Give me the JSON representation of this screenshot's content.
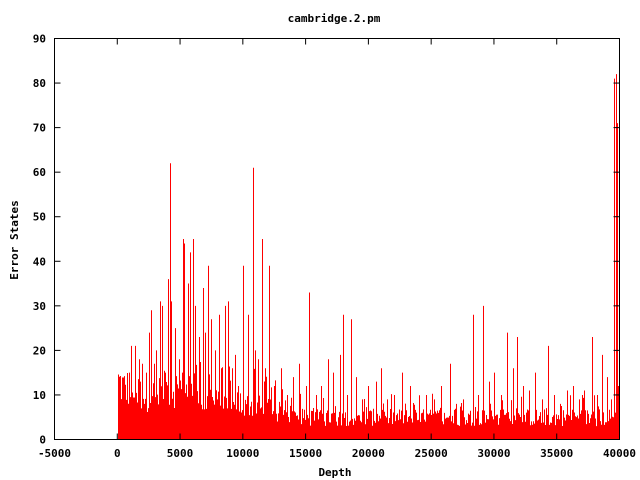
{
  "chart_data": {
    "type": "bar",
    "title": "cambridge.2.pm",
    "xlabel": "Depth",
    "ylabel": "Error States",
    "xlim": [
      -5000,
      40000
    ],
    "ylim": [
      0,
      90
    ],
    "x_ticks": [
      -5000,
      0,
      5000,
      10000,
      15000,
      20000,
      25000,
      30000,
      35000,
      40000
    ],
    "y_ticks": [
      0,
      10,
      20,
      30,
      40,
      50,
      60,
      70,
      80,
      90
    ],
    "grid": false,
    "legend": "none",
    "bar_color": "#ff0000",
    "data_start": 0,
    "data_end": 40000,
    "baseline_floor": [
      [
        0,
        8
      ],
      [
        500,
        7
      ],
      [
        1000,
        7
      ],
      [
        2000,
        6
      ],
      [
        3000,
        6
      ],
      [
        4000,
        7
      ],
      [
        5000,
        7
      ],
      [
        6000,
        6
      ],
      [
        7000,
        5
      ],
      [
        8000,
        5
      ],
      [
        10000,
        5
      ],
      [
        12000,
        4
      ],
      [
        15000,
        3
      ],
      [
        20000,
        3
      ],
      [
        25000,
        3
      ],
      [
        30000,
        3
      ],
      [
        35000,
        3
      ],
      [
        39500,
        3
      ],
      [
        40000,
        6
      ]
    ],
    "peaks": [
      [
        0,
        11
      ],
      [
        300,
        9
      ],
      [
        600,
        12
      ],
      [
        900,
        15
      ],
      [
        1100,
        21
      ],
      [
        1400,
        21
      ],
      [
        1700,
        18
      ],
      [
        2000,
        17
      ],
      [
        2300,
        15
      ],
      [
        2500,
        24
      ],
      [
        2700,
        29
      ],
      [
        2900,
        17
      ],
      [
        3100,
        20
      ],
      [
        3400,
        31
      ],
      [
        3600,
        30
      ],
      [
        3800,
        15
      ],
      [
        4000,
        36
      ],
      [
        4200,
        62
      ],
      [
        4300,
        31
      ],
      [
        4600,
        25
      ],
      [
        4900,
        18
      ],
      [
        5200,
        45
      ],
      [
        5300,
        44
      ],
      [
        5600,
        35
      ],
      [
        5800,
        42
      ],
      [
        6000,
        45
      ],
      [
        6200,
        30
      ],
      [
        6500,
        23
      ],
      [
        6800,
        34
      ],
      [
        7000,
        24
      ],
      [
        7200,
        39
      ],
      [
        7500,
        27
      ],
      [
        7800,
        20
      ],
      [
        8100,
        28
      ],
      [
        8300,
        16
      ],
      [
        8600,
        30
      ],
      [
        8800,
        31
      ],
      [
        9100,
        16
      ],
      [
        9400,
        19
      ],
      [
        9600,
        12
      ],
      [
        10000,
        39
      ],
      [
        10400,
        28
      ],
      [
        10800,
        61
      ],
      [
        11000,
        20
      ],
      [
        11200,
        18
      ],
      [
        11500,
        45
      ],
      [
        11800,
        16
      ],
      [
        12100,
        39
      ],
      [
        12500,
        12
      ],
      [
        13000,
        16
      ],
      [
        13500,
        10
      ],
      [
        14000,
        14
      ],
      [
        14500,
        17
      ],
      [
        15000,
        12
      ],
      [
        15300,
        33
      ],
      [
        15800,
        10
      ],
      [
        16200,
        12
      ],
      [
        16800,
        18
      ],
      [
        17200,
        15
      ],
      [
        17700,
        19
      ],
      [
        18000,
        28
      ],
      [
        18300,
        10
      ],
      [
        18600,
        27
      ],
      [
        19000,
        14
      ],
      [
        19500,
        9
      ],
      [
        20000,
        12
      ],
      [
        20600,
        13
      ],
      [
        21000,
        16
      ],
      [
        21500,
        9
      ],
      [
        22000,
        10
      ],
      [
        22700,
        15
      ],
      [
        23300,
        12
      ],
      [
        24000,
        8
      ],
      [
        24600,
        10
      ],
      [
        25200,
        9
      ],
      [
        25800,
        12
      ],
      [
        26500,
        17
      ],
      [
        27000,
        8
      ],
      [
        27500,
        9
      ],
      [
        28300,
        28
      ],
      [
        28700,
        10
      ],
      [
        29100,
        30
      ],
      [
        29600,
        13
      ],
      [
        30000,
        15
      ],
      [
        30600,
        10
      ],
      [
        31000,
        24
      ],
      [
        31500,
        16
      ],
      [
        31800,
        23
      ],
      [
        32300,
        12
      ],
      [
        32800,
        11
      ],
      [
        33300,
        15
      ],
      [
        33800,
        9
      ],
      [
        34300,
        21
      ],
      [
        34800,
        10
      ],
      [
        35300,
        8
      ],
      [
        35800,
        11
      ],
      [
        36300,
        12
      ],
      [
        36800,
        9
      ],
      [
        37200,
        11
      ],
      [
        37800,
        23
      ],
      [
        38200,
        10
      ],
      [
        38600,
        19
      ],
      [
        39000,
        14
      ],
      [
        39300,
        9
      ],
      [
        39600,
        81
      ],
      [
        39700,
        82
      ],
      [
        39800,
        71
      ],
      [
        39900,
        12
      ]
    ]
  }
}
